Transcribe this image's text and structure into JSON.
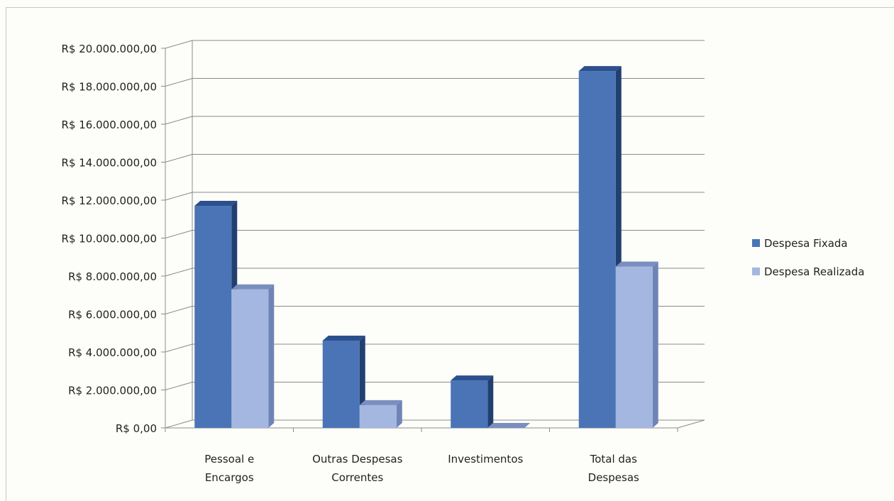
{
  "chart_data": {
    "type": "bar",
    "title": "",
    "xlabel": "",
    "ylabel": "",
    "categories": [
      [
        "Pessoal e",
        "Encargos"
      ],
      [
        "Outras Despesas",
        "Correntes"
      ],
      [
        "Investimentos"
      ],
      [
        "Total das",
        "Despesas"
      ]
    ],
    "series": [
      {
        "name": "Despesa Fixada",
        "values": [
          11700000,
          4600000,
          2500000,
          18800000
        ]
      },
      {
        "name": "Despesa Realizada",
        "values": [
          7300000,
          1200000,
          0,
          8500000
        ]
      }
    ],
    "ylim": [
      0,
      20000000
    ],
    "yticks": [
      "R$ 0,00",
      "R$ 2.000.000,00",
      "R$ 4.000.000,00",
      "R$ 6.000.000,00",
      "R$ 8.000.000,00",
      "R$ 10.000.000,00",
      "R$ 12.000.000,00",
      "R$ 14.000.000,00",
      "R$ 16.000.000,00",
      "R$ 18.000.000,00",
      "R$ 20.000.000,00"
    ],
    "grid": true,
    "legend_position": "right",
    "colors": {
      "Despesa Fixada": {
        "front": "#4a74b6",
        "top": "#2c4f8d",
        "side": "#22406f"
      },
      "Despesa Realizada": {
        "front": "#a4b7e0",
        "top": "#7a8fbf",
        "side": "#6f84b6"
      },
      "grid": "#8a8a8a",
      "text": "#222222"
    }
  }
}
